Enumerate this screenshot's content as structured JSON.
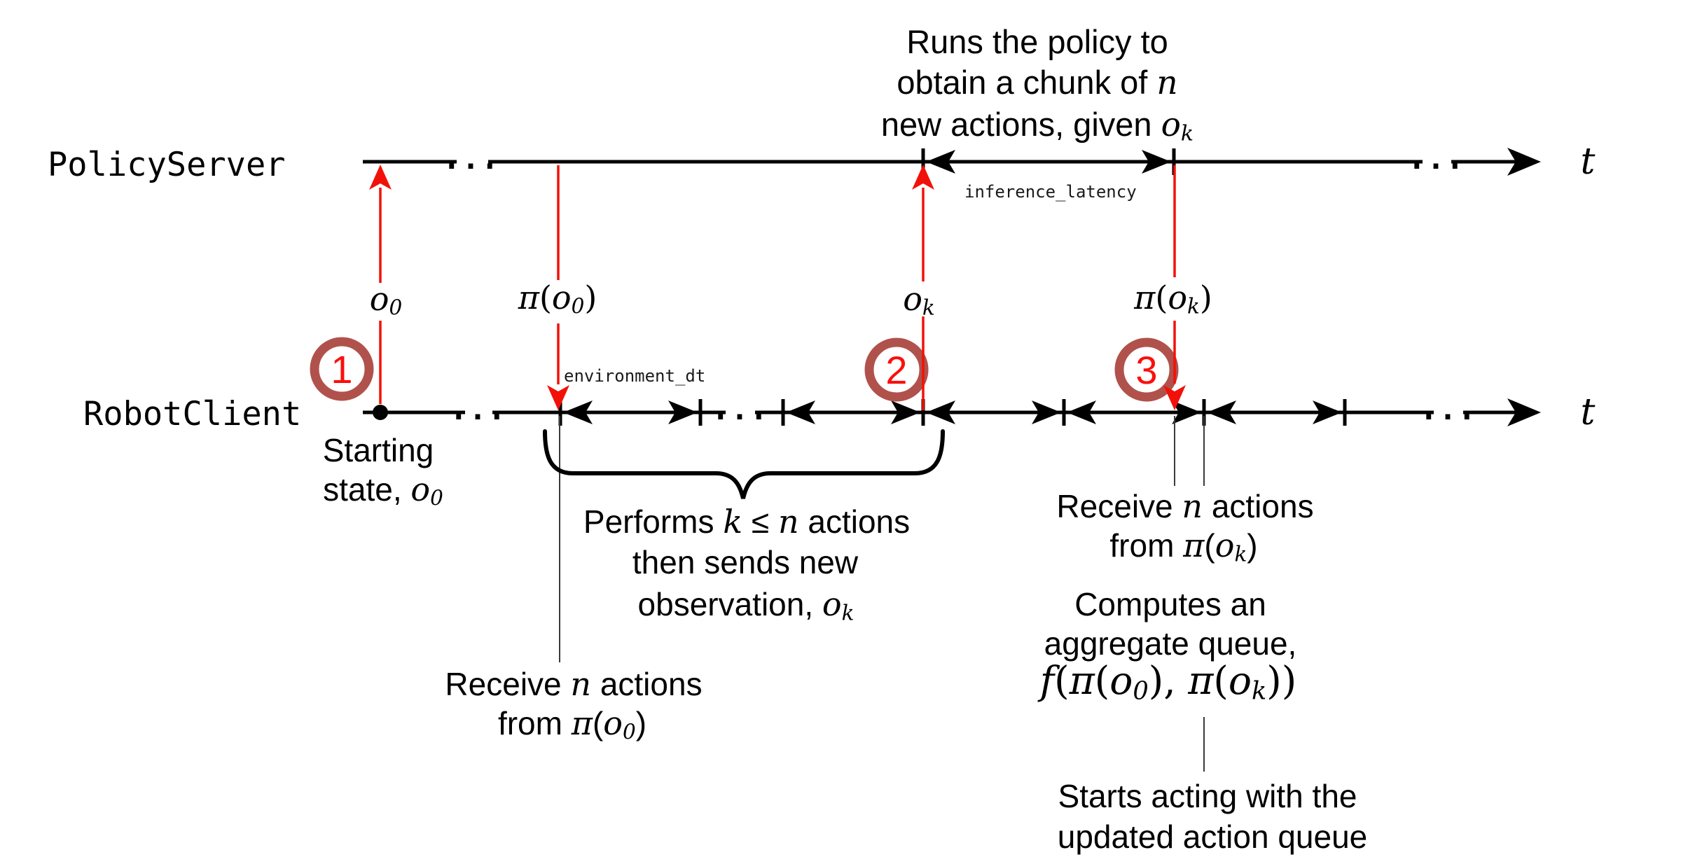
{
  "colors": {
    "background": "#ffffff",
    "timeline": "#000000",
    "message_red": "#f21108",
    "step_ring": "#b0524b",
    "step_number": "#fb0f0c",
    "connector_gray": "#3a3a3a"
  },
  "lanes": {
    "policy_server": {
      "label": "PolicyServer"
    },
    "robot_client": {
      "label": "RobotClient"
    }
  },
  "axis": {
    "t": [
      {
        "t": "t",
        "v": 1
      }
    ]
  },
  "ellipsis": "...",
  "timeline_labels": {
    "environment_dt": "environment_dt",
    "inference_latency": "inference_latency"
  },
  "markers": {
    "step1": "1",
    "step2": "2",
    "step3": "3"
  },
  "math_labels": {
    "o0": [
      {
        "t": "o",
        "v": 1
      },
      {
        "t": "0",
        "s": 1
      }
    ],
    "pi_o0": [
      {
        "t": "π",
        "v": 1
      },
      {
        "t": "(",
        "p": 1
      },
      {
        "t": "o",
        "v": 1
      },
      {
        "t": "0",
        "s": 1
      },
      {
        "t": ")",
        "p": 1
      }
    ],
    "ok": [
      {
        "t": "o",
        "v": 1
      },
      {
        "t": "k",
        "s": 1
      }
    ],
    "pi_ok": [
      {
        "t": "π",
        "v": 1
      },
      {
        "t": "(",
        "p": 1
      },
      {
        "t": "o",
        "v": 1
      },
      {
        "t": "k",
        "s": 1
      },
      {
        "t": ")",
        "p": 1
      }
    ]
  },
  "server_note": {
    "line1": "Runs the policy to",
    "line2": [
      {
        "t": "obtain a chunk of "
      },
      {
        "t": "n",
        "v": 1
      }
    ],
    "line3": [
      {
        "t": "new actions, given "
      },
      {
        "t": "o",
        "v": 1
      },
      {
        "t": "k",
        "s": 1
      }
    ]
  },
  "notes": {
    "starting": {
      "line1": "Starting",
      "line2": [
        {
          "t": "state, "
        },
        {
          "t": "o",
          "v": 1
        },
        {
          "t": "0",
          "s": 1
        }
      ]
    },
    "performs": {
      "line1": [
        {
          "t": "Performs "
        },
        {
          "t": "k",
          "v": 1
        },
        {
          "t": " ≤ "
        },
        {
          "t": "n",
          "v": 1
        },
        {
          "t": " actions"
        }
      ],
      "line2": "then sends new",
      "line3": [
        {
          "t": "observation, "
        },
        {
          "t": "o",
          "v": 1
        },
        {
          "t": "k",
          "s": 1
        }
      ]
    },
    "receive_o0": {
      "line1": [
        {
          "t": "Receive "
        },
        {
          "t": "n",
          "v": 1
        },
        {
          "t": " actions"
        }
      ],
      "line2": [
        {
          "t": "from "
        },
        {
          "t": "π",
          "v": 1
        },
        {
          "t": "("
        },
        {
          "t": "o",
          "v": 1
        },
        {
          "t": "0",
          "s": 1
        },
        {
          "t": ")"
        }
      ]
    },
    "receive_ok": {
      "line1": [
        {
          "t": "Receive "
        },
        {
          "t": "n",
          "v": 1
        },
        {
          "t": " actions"
        }
      ],
      "line2": [
        {
          "t": "from "
        },
        {
          "t": "π",
          "v": 1
        },
        {
          "t": "("
        },
        {
          "t": "o",
          "v": 1
        },
        {
          "t": "k",
          "s": 1
        },
        {
          "t": ")"
        }
      ]
    },
    "computes": {
      "line1": "Computes an",
      "line2": "aggregate queue,"
    },
    "formula": [
      {
        "t": "f",
        "v": 1
      },
      {
        "t": "(",
        "p": 1
      },
      {
        "t": "π",
        "v": 1
      },
      {
        "t": "(",
        "p": 1
      },
      {
        "t": "o",
        "v": 1
      },
      {
        "t": "0",
        "s": 1
      },
      {
        "t": ")",
        "p": 1
      },
      {
        "t": ", ",
        "p": 1
      },
      {
        "t": "π",
        "v": 1
      },
      {
        "t": "(",
        "p": 1
      },
      {
        "t": "o",
        "v": 1
      },
      {
        "t": "k",
        "s": 1
      },
      {
        "t": ")",
        "p": 1
      },
      {
        "t": ")",
        "p": 1
      }
    ],
    "starts": {
      "line1": "Starts acting with the",
      "line2": "updated action queue"
    }
  }
}
